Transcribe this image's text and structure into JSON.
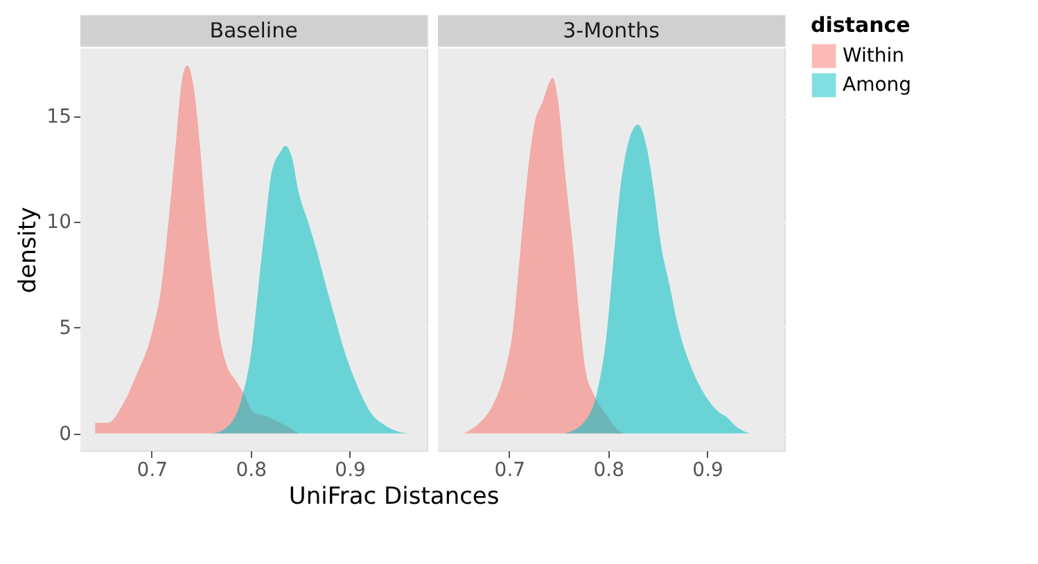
{
  "chart_data": [
    {
      "type": "area",
      "title": "Baseline",
      "ylabel": "density",
      "xlabel": "UniFrac Distances",
      "xlim": [
        0.628,
        0.978
      ],
      "ylim": [
        -0.8,
        18.2
      ],
      "xticks": [
        0.7,
        0.8,
        0.9
      ],
      "yticks": [
        0,
        5,
        10,
        15
      ],
      "grid": true,
      "legend": "right",
      "legend_title": "distance",
      "series": [
        {
          "name": "Within",
          "color": "#f8766d",
          "x": [
            0.643,
            0.656,
            0.67,
            0.685,
            0.7,
            0.71,
            0.717,
            0.724,
            0.731,
            0.736,
            0.742,
            0.749,
            0.755,
            0.762,
            0.769,
            0.776,
            0.785,
            0.794,
            0.803,
            0.817,
            0.83,
            0.842,
            0.848
          ],
          "values": [
            0.5,
            0.5,
            1.3,
            2.8,
            4.7,
            7,
            10,
            13.5,
            16.8,
            17.4,
            16.5,
            13.5,
            10,
            7,
            4.5,
            3.2,
            2.5,
            1.8,
            1.0,
            0.8,
            0.5,
            0.2,
            0
          ]
        },
        {
          "name": "Among",
          "color": "#00bfc4",
          "x": [
            0.762,
            0.776,
            0.79,
            0.801,
            0.808,
            0.815,
            0.821,
            0.83,
            0.835,
            0.842,
            0.848,
            0.858,
            0.867,
            0.876,
            0.885,
            0.894,
            0.903,
            0.912,
            0.921,
            0.935,
            0.948,
            0.96
          ],
          "values": [
            0,
            0.3,
            1.5,
            4,
            7,
            10,
            12.3,
            13.3,
            13.6,
            13,
            11.5,
            10,
            8.6,
            7,
            5.5,
            4,
            2.8,
            1.8,
            1.0,
            0.4,
            0.1,
            0
          ]
        }
      ]
    },
    {
      "type": "area",
      "title": "3-Months",
      "xlim": [
        0.628,
        0.978
      ],
      "ylim": [
        -0.8,
        18.2
      ],
      "xticks": [
        0.7,
        0.8,
        0.9
      ],
      "yticks": [
        0,
        5,
        10,
        15
      ],
      "grid": true,
      "tick_labels": "x",
      "legend": "right",
      "series": [
        {
          "name": "Within",
          "color": "#f8766d",
          "x": [
            0.654,
            0.67,
            0.683,
            0.695,
            0.704,
            0.711,
            0.718,
            0.725,
            0.734,
            0.744,
            0.75,
            0.756,
            0.764,
            0.771,
            0.777,
            0.786,
            0.798,
            0.807,
            0.816
          ],
          "values": [
            0,
            0.5,
            1.3,
            2.8,
            5,
            8.5,
            12,
            14.5,
            15.7,
            16.8,
            15.5,
            12.5,
            9,
            5.5,
            3,
            1.8,
            0.9,
            0.3,
            0
          ]
        },
        {
          "name": "Among",
          "color": "#00bfc4",
          "x": [
            0.756,
            0.775,
            0.789,
            0.798,
            0.805,
            0.812,
            0.819,
            0.83,
            0.839,
            0.846,
            0.853,
            0.862,
            0.871,
            0.885,
            0.898,
            0.912,
            0.919,
            0.93,
            0.943
          ],
          "values": [
            0,
            0.5,
            2,
            4.5,
            8,
            11.5,
            13.5,
            14.6,
            13.5,
            11.5,
            9,
            7,
            5,
            3,
            1.8,
            1.0,
            0.8,
            0.3,
            0
          ]
        }
      ]
    }
  ]
}
